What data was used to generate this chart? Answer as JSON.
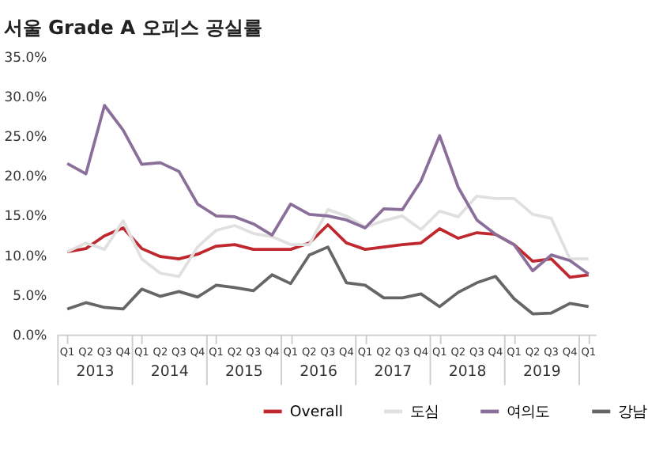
{
  "chart_data": {
    "type": "line",
    "title": "서울 Grade A 오피스 공실률",
    "categories": [
      "Q1",
      "Q2",
      "Q3",
      "Q4",
      "Q1",
      "Q2",
      "Q3",
      "Q4",
      "Q1",
      "Q2",
      "Q3",
      "Q4",
      "Q1",
      "Q2",
      "Q3",
      "Q4",
      "Q1",
      "Q2",
      "Q3",
      "Q4",
      "Q1",
      "Q2",
      "Q3",
      "Q4",
      "Q1",
      "Q2",
      "Q3",
      "Q4",
      "Q1"
    ],
    "annotations": [
      "2013",
      "2014",
      "2015",
      "2016",
      "2017",
      "2018",
      "2019"
    ],
    "series": [
      {
        "name": "Overall",
        "color": "#c0282f",
        "values": [
          10.4,
          10.8,
          12.4,
          13.4,
          10.8,
          9.8,
          9.5,
          10.1,
          11.1,
          11.3,
          10.7,
          10.7,
          10.7,
          11.5,
          13.8,
          11.5,
          10.7,
          11.0,
          11.3,
          11.5,
          13.3,
          12.1,
          12.8,
          12.6,
          11.3,
          9.2,
          9.5,
          7.2,
          7.5
        ]
      },
      {
        "name": "도심",
        "color": "#e0e0e0",
        "values": [
          10.4,
          11.5,
          10.7,
          14.3,
          9.5,
          7.7,
          7.3,
          11.0,
          13.1,
          13.7,
          12.7,
          12.3,
          11.3,
          11.3,
          15.7,
          14.9,
          13.5,
          14.3,
          14.9,
          13.2,
          15.5,
          14.8,
          17.4,
          17.1,
          17.1,
          15.1,
          14.6,
          9.5,
          9.5
        ]
      },
      {
        "name": "여의도",
        "color": "#8a6f9a",
        "values": [
          21.5,
          20.2,
          28.8,
          25.7,
          21.4,
          21.6,
          20.5,
          16.4,
          14.9,
          14.8,
          13.9,
          12.5,
          16.4,
          15.1,
          14.9,
          14.4,
          13.4,
          15.8,
          15.7,
          19.3,
          25.0,
          18.5,
          14.4,
          12.6,
          11.3,
          8.0,
          10.0,
          9.3,
          7.6
        ]
      },
      {
        "name": "강남",
        "color": "#666666",
        "values": [
          3.2,
          4.0,
          3.4,
          3.2,
          5.7,
          4.8,
          5.4,
          4.7,
          6.2,
          5.9,
          5.5,
          7.5,
          6.4,
          10.0,
          11.0,
          6.5,
          6.2,
          4.6,
          4.6,
          5.1,
          3.5,
          5.3,
          6.5,
          7.3,
          4.5,
          2.6,
          2.7,
          3.9,
          3.5
        ]
      }
    ],
    "ylim": [
      0,
      35
    ],
    "yticks": [
      {
        "value": 0,
        "label": "0.0%"
      },
      {
        "value": 5,
        "label": "5.0%"
      },
      {
        "value": 10,
        "label": "10.0%"
      },
      {
        "value": 15,
        "label": "15.0%"
      },
      {
        "value": 20,
        "label": "20.0%"
      },
      {
        "value": 25,
        "label": "25.0%"
      },
      {
        "value": 30,
        "label": "30.0%"
      },
      {
        "value": 35,
        "label": "35.0%"
      }
    ],
    "grid": false,
    "legend": "bottom right",
    "marker": "none",
    "line_style": "solid"
  }
}
